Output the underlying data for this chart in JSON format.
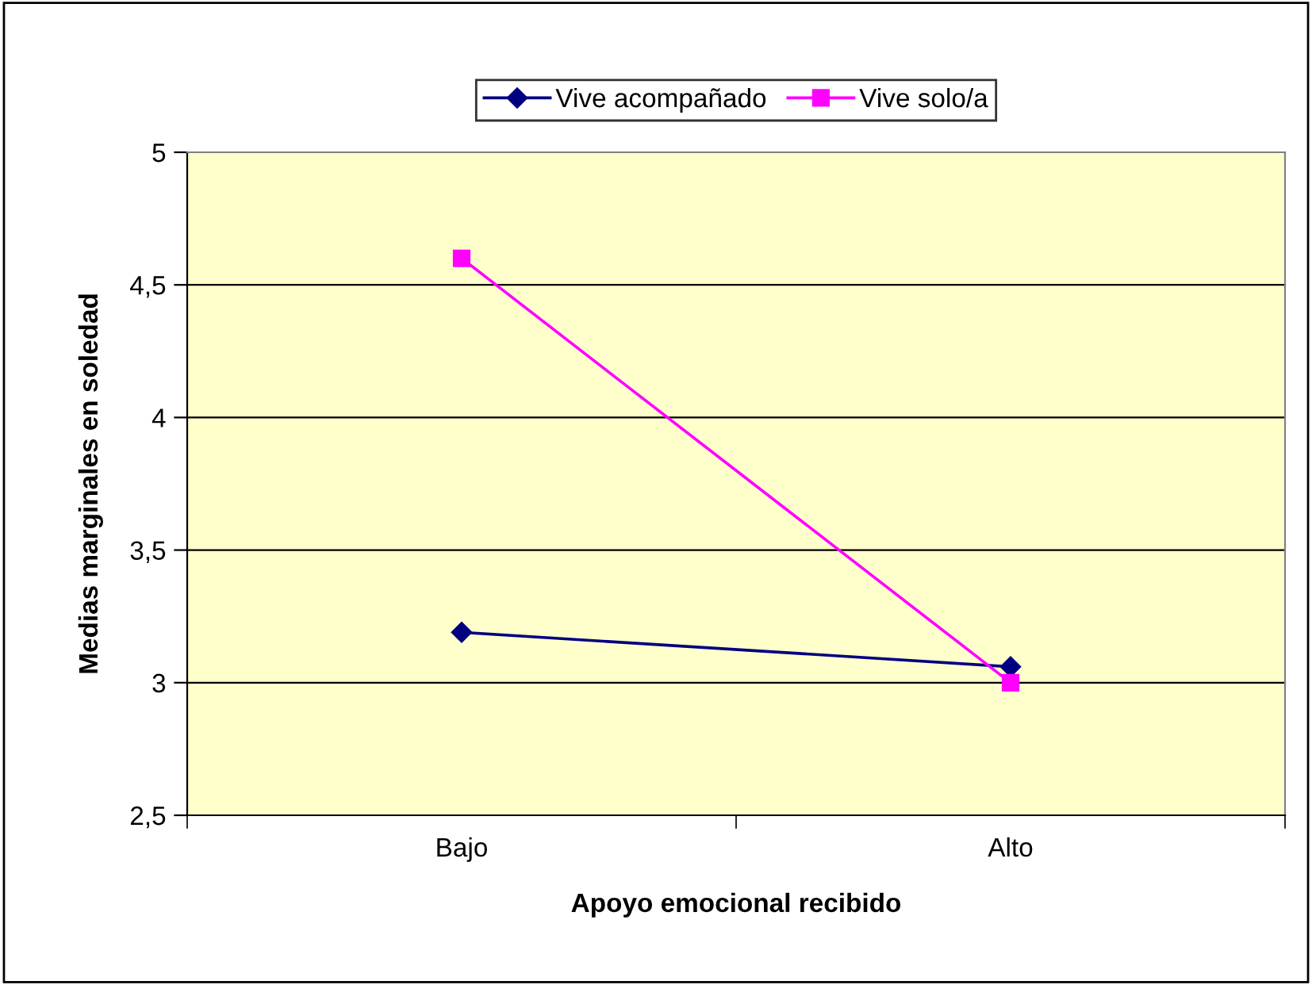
{
  "chart_data": {
    "type": "line",
    "xlabel": "Apoyo emocional recibido",
    "ylabel": "Medias marginales en soledad",
    "categories": [
      "Bajo",
      "Alto"
    ],
    "series": [
      {
        "name": "Vive acompañado",
        "color": "#000080",
        "values": [
          3.19,
          3.06
        ],
        "marker": "diamond"
      },
      {
        "name": "Vive solo/a",
        "color": "#ff00ff",
        "values": [
          4.6,
          3.0
        ],
        "marker": "square"
      }
    ],
    "ylim": [
      2.5,
      5
    ],
    "yticks": [
      {
        "value": 2.5,
        "label": "2,5"
      },
      3,
      {
        "value": 3.5,
        "label": "3,5"
      },
      4,
      {
        "value": 4.5,
        "label": "4,5"
      },
      5
    ],
    "grid": "y",
    "legend": "top",
    "line_style": "solid"
  }
}
